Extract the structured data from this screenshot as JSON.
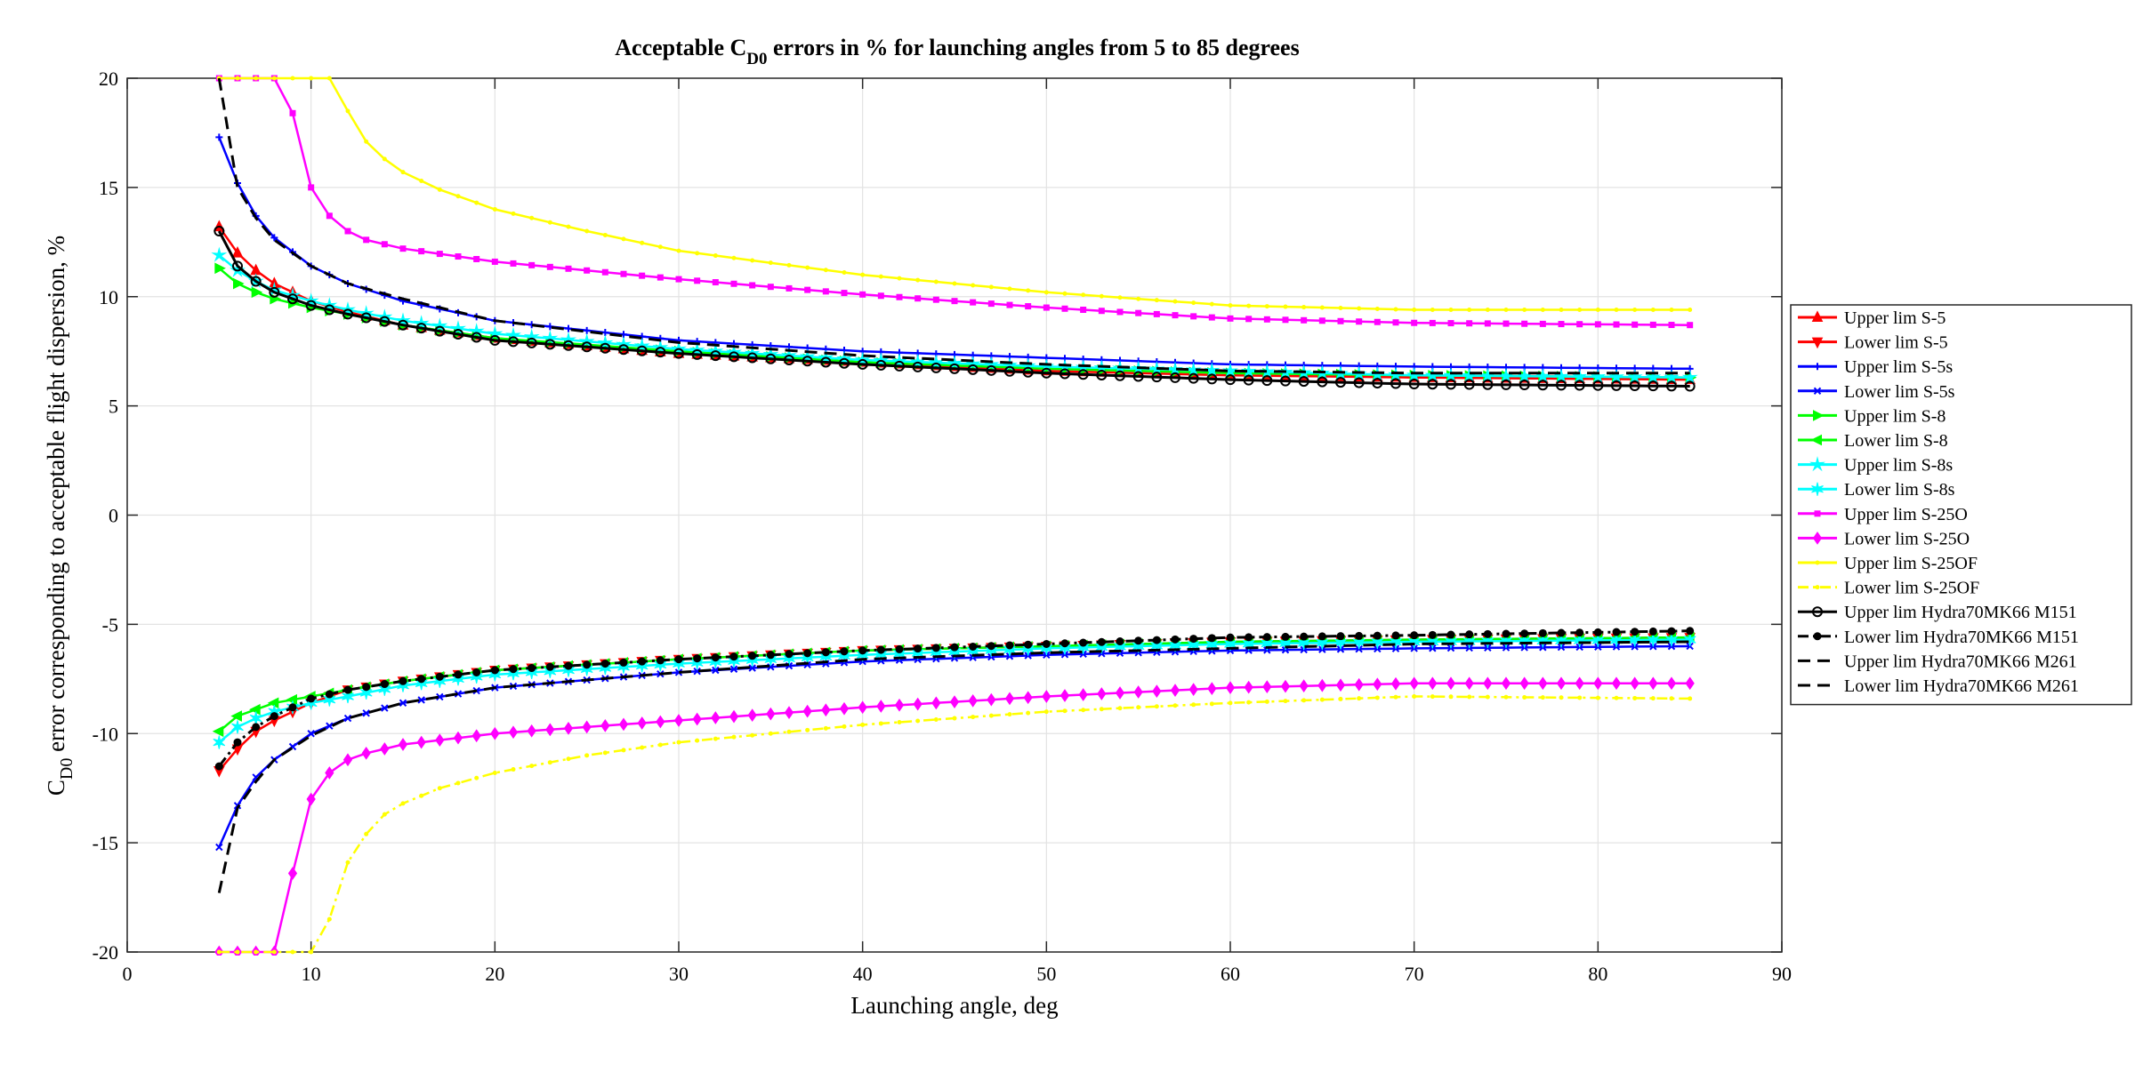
{
  "chart_data": {
    "type": "line",
    "title": "Acceptable C_D0 errors in % for launching angles from 5 to 85 degrees",
    "title_main": "Acceptable C",
    "title_sub": "D0",
    "title_rest": " errors in % for launching angles from 5 to 85 degrees",
    "xlabel": "Launching angle, deg",
    "ylabel": "C_D0 error corresponding to acceptable flight dispersion, %",
    "ylabel_main": "C",
    "ylabel_sub": "D0",
    "ylabel_rest": " error corresponding to acceptable flight dispersion, %",
    "xlim": [
      0,
      90
    ],
    "ylim": [
      -20,
      20
    ],
    "xticks": [
      0,
      10,
      20,
      30,
      40,
      50,
      60,
      70,
      80,
      90
    ],
    "yticks": [
      -20,
      -15,
      -10,
      -5,
      0,
      5,
      10,
      15,
      20
    ],
    "grid": true,
    "legend_position": "right",
    "x_start": 5,
    "x_end": 85,
    "x_step": 1,
    "series": [
      {
        "name": "Upper lim S-5",
        "color": "#ff0000",
        "marker": "triangle-up",
        "dash": "solid",
        "anchors": [
          [
            5,
            13.2
          ],
          [
            6,
            12.0
          ],
          [
            7,
            11.2
          ],
          [
            8,
            10.6
          ],
          [
            10,
            9.8
          ],
          [
            12,
            9.3
          ],
          [
            15,
            8.7
          ],
          [
            20,
            8.1
          ],
          [
            30,
            7.4
          ],
          [
            40,
            7.0
          ],
          [
            50,
            6.6
          ],
          [
            60,
            6.4
          ],
          [
            70,
            6.3
          ],
          [
            85,
            6.2
          ]
        ]
      },
      {
        "name": "Lower lim S-5",
        "color": "#ff0000",
        "marker": "triangle-down",
        "dash": "solid",
        "anchors": [
          [
            5,
            -11.7
          ],
          [
            6,
            -10.7
          ],
          [
            7,
            -9.9
          ],
          [
            8,
            -9.4
          ],
          [
            10,
            -8.6
          ],
          [
            12,
            -8.0
          ],
          [
            15,
            -7.6
          ],
          [
            20,
            -7.1
          ],
          [
            30,
            -6.6
          ],
          [
            40,
            -6.2
          ],
          [
            50,
            -6.0
          ],
          [
            60,
            -5.8
          ],
          [
            70,
            -5.7
          ],
          [
            85,
            -5.6
          ]
        ]
      },
      {
        "name": "Upper lim S-5s",
        "color": "#0000ff",
        "marker": "plus",
        "dash": "solid",
        "anchors": [
          [
            5,
            17.3
          ],
          [
            6,
            15.2
          ],
          [
            7,
            13.7
          ],
          [
            8,
            12.7
          ],
          [
            10,
            11.4
          ],
          [
            12,
            10.6
          ],
          [
            15,
            9.8
          ],
          [
            20,
            8.9
          ],
          [
            30,
            8.0
          ],
          [
            40,
            7.5
          ],
          [
            50,
            7.2
          ],
          [
            60,
            6.9
          ],
          [
            70,
            6.8
          ],
          [
            85,
            6.7
          ]
        ]
      },
      {
        "name": "Lower lim S-5s",
        "color": "#0000ff",
        "marker": "x",
        "dash": "solid",
        "anchors": [
          [
            5,
            -15.2
          ],
          [
            6,
            -13.3
          ],
          [
            7,
            -12.0
          ],
          [
            8,
            -11.2
          ],
          [
            10,
            -10.0
          ],
          [
            12,
            -9.3
          ],
          [
            15,
            -8.6
          ],
          [
            20,
            -7.9
          ],
          [
            30,
            -7.2
          ],
          [
            40,
            -6.7
          ],
          [
            50,
            -6.4
          ],
          [
            60,
            -6.2
          ],
          [
            70,
            -6.1
          ],
          [
            85,
            -6.0
          ]
        ]
      },
      {
        "name": "Upper lim S-8",
        "color": "#00ff00",
        "marker": "triangle-right",
        "dash": "solid",
        "anchors": [
          [
            5,
            11.3
          ],
          [
            6,
            10.6
          ],
          [
            7,
            10.2
          ],
          [
            8,
            9.9
          ],
          [
            10,
            9.5
          ],
          [
            12,
            9.2
          ],
          [
            15,
            8.7
          ],
          [
            20,
            8.1
          ],
          [
            30,
            7.5
          ],
          [
            40,
            7.0
          ],
          [
            50,
            6.7
          ],
          [
            60,
            6.5
          ],
          [
            70,
            6.4
          ],
          [
            85,
            6.3
          ]
        ]
      },
      {
        "name": "Lower lim S-8",
        "color": "#00ff00",
        "marker": "triangle-left",
        "dash": "solid",
        "anchors": [
          [
            5,
            -9.9
          ],
          [
            6,
            -9.2
          ],
          [
            7,
            -8.9
          ],
          [
            8,
            -8.6
          ],
          [
            10,
            -8.3
          ],
          [
            12,
            -8.0
          ],
          [
            15,
            -7.6
          ],
          [
            20,
            -7.1
          ],
          [
            30,
            -6.6
          ],
          [
            40,
            -6.2
          ],
          [
            50,
            -6.0
          ],
          [
            60,
            -5.8
          ],
          [
            70,
            -5.7
          ],
          [
            85,
            -5.6
          ]
        ]
      },
      {
        "name": "Upper lim S-8s",
        "color": "#00ffff",
        "marker": "star",
        "dash": "solid",
        "anchors": [
          [
            5,
            11.9
          ],
          [
            6,
            11.2
          ],
          [
            7,
            10.7
          ],
          [
            8,
            10.3
          ],
          [
            10,
            9.8
          ],
          [
            12,
            9.4
          ],
          [
            15,
            8.9
          ],
          [
            20,
            8.3
          ],
          [
            30,
            7.6
          ],
          [
            40,
            7.1
          ],
          [
            50,
            6.8
          ],
          [
            60,
            6.6
          ],
          [
            70,
            6.4
          ],
          [
            85,
            6.3
          ]
        ]
      },
      {
        "name": "Lower lim S-8s",
        "color": "#00ffff",
        "marker": "hexagram",
        "dash": "solid",
        "anchors": [
          [
            5,
            -10.4
          ],
          [
            6,
            -9.7
          ],
          [
            7,
            -9.3
          ],
          [
            8,
            -9.0
          ],
          [
            10,
            -8.6
          ],
          [
            12,
            -8.3
          ],
          [
            15,
            -7.8
          ],
          [
            20,
            -7.3
          ],
          [
            30,
            -6.8
          ],
          [
            40,
            -6.4
          ],
          [
            50,
            -6.1
          ],
          [
            60,
            -5.9
          ],
          [
            70,
            -5.8
          ],
          [
            85,
            -5.7
          ]
        ]
      },
      {
        "name": "Upper lim S-25O",
        "color": "#ff00ff",
        "marker": "square",
        "dash": "solid",
        "anchors": [
          [
            5,
            20
          ],
          [
            6,
            20
          ],
          [
            7,
            20
          ],
          [
            8,
            20
          ],
          [
            9,
            18.4
          ],
          [
            10,
            15.0
          ],
          [
            11,
            13.7
          ],
          [
            12,
            13.0
          ],
          [
            13,
            12.6
          ],
          [
            15,
            12.2
          ],
          [
            20,
            11.6
          ],
          [
            30,
            10.8
          ],
          [
            40,
            10.1
          ],
          [
            50,
            9.5
          ],
          [
            60,
            9.0
          ],
          [
            70,
            8.8
          ],
          [
            85,
            8.7
          ]
        ]
      },
      {
        "name": "Lower lim S-25O",
        "color": "#ff00ff",
        "marker": "diamond",
        "dash": "solid",
        "anchors": [
          [
            5,
            -20
          ],
          [
            6,
            -20
          ],
          [
            7,
            -20
          ],
          [
            8,
            -20
          ],
          [
            9,
            -16.4
          ],
          [
            10,
            -13.0
          ],
          [
            11,
            -11.8
          ],
          [
            12,
            -11.2
          ],
          [
            13,
            -10.9
          ],
          [
            15,
            -10.5
          ],
          [
            20,
            -10.0
          ],
          [
            30,
            -9.4
          ],
          [
            40,
            -8.8
          ],
          [
            50,
            -8.3
          ],
          [
            60,
            -7.9
          ],
          [
            70,
            -7.7
          ],
          [
            85,
            -7.7
          ]
        ]
      },
      {
        "name": "Upper lim S-25OF",
        "color": "#ffff00",
        "marker": "dot",
        "dash": "solid",
        "anchors": [
          [
            5,
            20
          ],
          [
            6,
            20
          ],
          [
            7,
            20
          ],
          [
            8,
            20
          ],
          [
            9,
            20
          ],
          [
            10,
            20
          ],
          [
            11,
            20
          ],
          [
            12,
            18.5
          ],
          [
            13,
            17.1
          ],
          [
            14,
            16.3
          ],
          [
            15,
            15.7
          ],
          [
            17,
            14.9
          ],
          [
            20,
            14.0
          ],
          [
            25,
            13.0
          ],
          [
            30,
            12.1
          ],
          [
            40,
            11.0
          ],
          [
            50,
            10.2
          ],
          [
            60,
            9.6
          ],
          [
            70,
            9.4
          ],
          [
            85,
            9.4
          ]
        ]
      },
      {
        "name": "Lower lim S-25OF",
        "color": "#ffff00",
        "marker": "dot",
        "dash": "dashdot",
        "anchors": [
          [
            5,
            -20
          ],
          [
            6,
            -20
          ],
          [
            7,
            -20
          ],
          [
            8,
            -20
          ],
          [
            9,
            -20
          ],
          [
            10,
            -20
          ],
          [
            11,
            -18.5
          ],
          [
            12,
            -15.9
          ],
          [
            13,
            -14.6
          ],
          [
            14,
            -13.7
          ],
          [
            15,
            -13.2
          ],
          [
            17,
            -12.5
          ],
          [
            20,
            -11.8
          ],
          [
            25,
            -11.0
          ],
          [
            30,
            -10.4
          ],
          [
            40,
            -9.6
          ],
          [
            50,
            -9.0
          ],
          [
            60,
            -8.6
          ],
          [
            70,
            -8.3
          ],
          [
            85,
            -8.4
          ]
        ]
      },
      {
        "name": "Upper lim Hydra70MK66 M151",
        "color": "#000000",
        "marker": "circle",
        "dash": "solid",
        "anchors": [
          [
            5,
            13.0
          ],
          [
            6,
            11.4
          ],
          [
            7,
            10.7
          ],
          [
            8,
            10.2
          ],
          [
            10,
            9.6
          ],
          [
            12,
            9.2
          ],
          [
            15,
            8.7
          ],
          [
            20,
            8.0
          ],
          [
            30,
            7.4
          ],
          [
            40,
            6.9
          ],
          [
            50,
            6.5
          ],
          [
            60,
            6.2
          ],
          [
            70,
            6.0
          ],
          [
            85,
            5.9
          ]
        ]
      },
      {
        "name": "Lower lim Hydra70MK66 M151",
        "color": "#000000",
        "marker": "filled-dot",
        "dash": "dashdot",
        "anchors": [
          [
            5,
            -11.5
          ],
          [
            6,
            -10.4
          ],
          [
            7,
            -9.7
          ],
          [
            8,
            -9.2
          ],
          [
            10,
            -8.4
          ],
          [
            12,
            -8.0
          ],
          [
            15,
            -7.6
          ],
          [
            20,
            -7.1
          ],
          [
            30,
            -6.6
          ],
          [
            40,
            -6.2
          ],
          [
            50,
            -5.9
          ],
          [
            60,
            -5.6
          ],
          [
            70,
            -5.5
          ],
          [
            85,
            -5.3
          ]
        ]
      },
      {
        "name": "Upper lim Hydra70MK66 M261",
        "color": "#000000",
        "marker": "none",
        "dash": "dashed",
        "anchors": [
          [
            5,
            20
          ],
          [
            6,
            15.0
          ],
          [
            7,
            13.6
          ],
          [
            8,
            12.6
          ],
          [
            10,
            11.4
          ],
          [
            12,
            10.6
          ],
          [
            15,
            9.9
          ],
          [
            20,
            8.9
          ],
          [
            30,
            7.9
          ],
          [
            40,
            7.3
          ],
          [
            50,
            6.9
          ],
          [
            60,
            6.6
          ],
          [
            70,
            6.5
          ],
          [
            85,
            6.5
          ]
        ]
      },
      {
        "name": "Lower lim Hydra70MK66 M261",
        "color": "#000000",
        "marker": "none",
        "dash": "dashed",
        "anchors": [
          [
            5,
            -17.3
          ],
          [
            6,
            -13.4
          ],
          [
            7,
            -12.2
          ],
          [
            8,
            -11.2
          ],
          [
            10,
            -10.1
          ],
          [
            12,
            -9.3
          ],
          [
            15,
            -8.6
          ],
          [
            20,
            -7.9
          ],
          [
            30,
            -7.2
          ],
          [
            40,
            -6.6
          ],
          [
            50,
            -6.3
          ],
          [
            60,
            -6.1
          ],
          [
            70,
            -5.9
          ],
          [
            85,
            -5.8
          ]
        ]
      }
    ]
  }
}
